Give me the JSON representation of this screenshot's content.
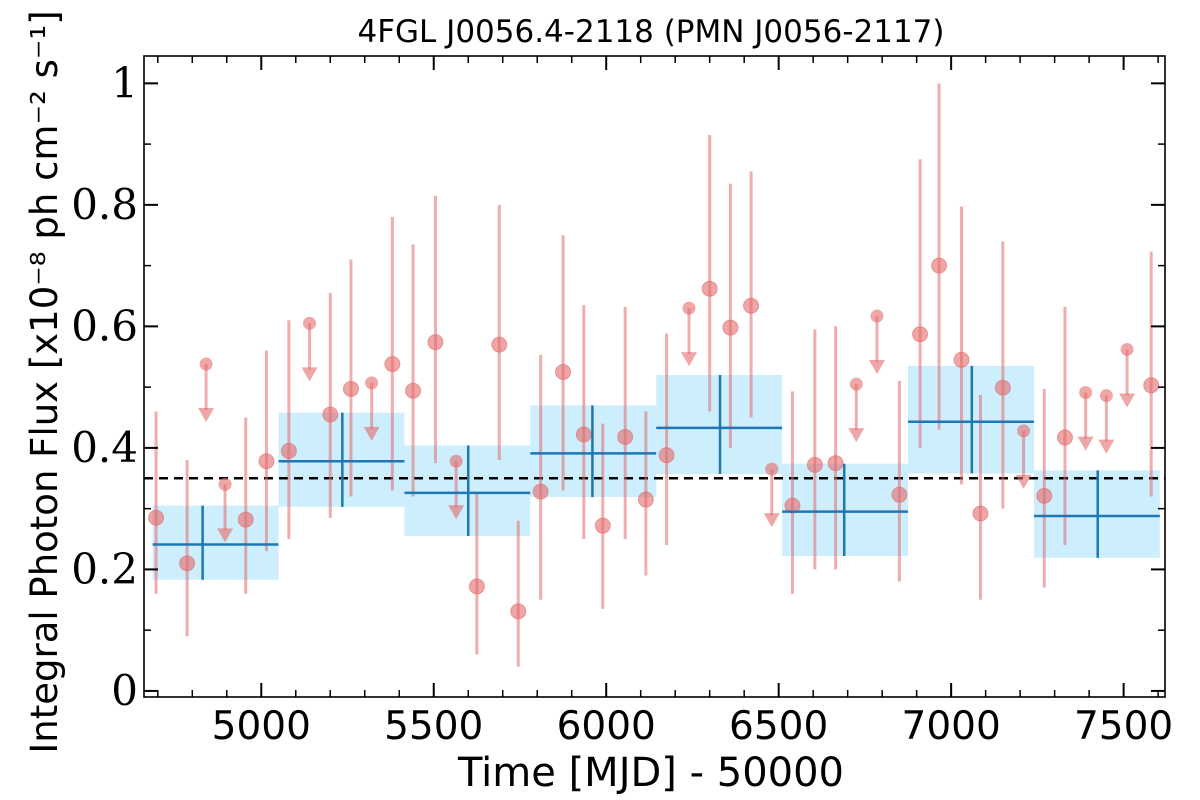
{
  "chart_data": {
    "type": "scatter",
    "title": "4FGL J0056.4-2118 (PMN J0056-2117)",
    "xlabel": "Time [MJD] - 50000",
    "ylabel": "Integral Photon Flux [x10⁻⁸ ph cm⁻² s⁻¹]",
    "xlim": [
      4660,
      7620
    ],
    "ylim": [
      -0.01,
      1.045
    ],
    "x_ticks": [
      5000,
      5500,
      6000,
      6500,
      7000,
      7500
    ],
    "x_tick_labels": [
      "5000",
      "5500",
      "6000",
      "6500",
      "7000",
      "7500"
    ],
    "y_ticks": [
      0,
      0.2,
      0.4,
      0.6,
      0.8,
      1.0
    ],
    "y_tick_labels": [
      "0",
      "0.2",
      "0.4",
      "0.6",
      "0.8",
      "1"
    ],
    "reference_line": {
      "y": 0.35,
      "style": "dashed",
      "color": "#000000"
    },
    "colors": {
      "points": "#e36a6a",
      "binned": "#1f77b4",
      "binned_band": "#cdeefd",
      "reference": "#000000"
    },
    "series": [
      {
        "kind": "measurement",
        "points": [
          {
            "x": 4695,
            "y": 0.285,
            "lo": 0.16,
            "hi": 0.46
          },
          {
            "x": 4785,
            "y": 0.21,
            "lo": 0.09,
            "hi": 0.38
          },
          {
            "x": 4955,
            "y": 0.282,
            "lo": 0.16,
            "hi": 0.45
          },
          {
            "x": 5015,
            "y": 0.378,
            "lo": 0.23,
            "hi": 0.56
          },
          {
            "x": 5080,
            "y": 0.395,
            "lo": 0.25,
            "hi": 0.61
          },
          {
            "x": 5200,
            "y": 0.455,
            "lo": 0.285,
            "hi": 0.655
          },
          {
            "x": 5260,
            "y": 0.497,
            "lo": 0.32,
            "hi": 0.71
          },
          {
            "x": 5380,
            "y": 0.538,
            "lo": 0.33,
            "hi": 0.78
          },
          {
            "x": 5440,
            "y": 0.494,
            "lo": 0.32,
            "hi": 0.735
          },
          {
            "x": 5505,
            "y": 0.574,
            "lo": 0.375,
            "hi": 0.815
          },
          {
            "x": 5625,
            "y": 0.172,
            "lo": 0.06,
            "hi": 0.325
          },
          {
            "x": 5690,
            "y": 0.57,
            "lo": 0.38,
            "hi": 0.8
          },
          {
            "x": 5745,
            "y": 0.131,
            "lo": 0.04,
            "hi": 0.28
          },
          {
            "x": 5810,
            "y": 0.328,
            "lo": 0.15,
            "hi": 0.553
          },
          {
            "x": 5875,
            "y": 0.525,
            "lo": 0.33,
            "hi": 0.75
          },
          {
            "x": 5935,
            "y": 0.422,
            "lo": 0.25,
            "hi": 0.635
          },
          {
            "x": 5990,
            "y": 0.272,
            "lo": 0.135,
            "hi": 0.44
          },
          {
            "x": 6055,
            "y": 0.418,
            "lo": 0.25,
            "hi": 0.632
          },
          {
            "x": 6115,
            "y": 0.315,
            "lo": 0.19,
            "hi": 0.46
          },
          {
            "x": 6175,
            "y": 0.388,
            "lo": 0.24,
            "hi": 0.588
          },
          {
            "x": 6300,
            "y": 0.662,
            "lo": 0.46,
            "hi": 0.915
          },
          {
            "x": 6360,
            "y": 0.598,
            "lo": 0.4,
            "hi": 0.835
          },
          {
            "x": 6420,
            "y": 0.634,
            "lo": 0.45,
            "hi": 0.855
          },
          {
            "x": 6540,
            "y": 0.305,
            "lo": 0.16,
            "hi": 0.493
          },
          {
            "x": 6605,
            "y": 0.372,
            "lo": 0.2,
            "hi": 0.595
          },
          {
            "x": 6665,
            "y": 0.375,
            "lo": 0.2,
            "hi": 0.6
          },
          {
            "x": 6850,
            "y": 0.323,
            "lo": 0.18,
            "hi": 0.51
          },
          {
            "x": 6910,
            "y": 0.587,
            "lo": 0.4,
            "hi": 0.875
          },
          {
            "x": 6965,
            "y": 0.7,
            "lo": 0.43,
            "hi": 1.0
          },
          {
            "x": 7030,
            "y": 0.545,
            "lo": 0.34,
            "hi": 0.797
          },
          {
            "x": 7085,
            "y": 0.292,
            "lo": 0.15,
            "hi": 0.487
          },
          {
            "x": 7150,
            "y": 0.499,
            "lo": 0.3,
            "hi": 0.74
          },
          {
            "x": 7270,
            "y": 0.321,
            "lo": 0.17,
            "hi": 0.497
          },
          {
            "x": 7330,
            "y": 0.417,
            "lo": 0.24,
            "hi": 0.632
          },
          {
            "x": 7580,
            "y": 0.503,
            "lo": 0.32,
            "hi": 0.723
          }
        ]
      },
      {
        "kind": "upper_limit",
        "points": [
          {
            "x": 4840,
            "y": 0.538
          },
          {
            "x": 4895,
            "y": 0.34
          },
          {
            "x": 5140,
            "y": 0.605
          },
          {
            "x": 5320,
            "y": 0.507
          },
          {
            "x": 5565,
            "y": 0.378
          },
          {
            "x": 6240,
            "y": 0.63
          },
          {
            "x": 6480,
            "y": 0.365
          },
          {
            "x": 6725,
            "y": 0.505
          },
          {
            "x": 6785,
            "y": 0.617
          },
          {
            "x": 7210,
            "y": 0.428
          },
          {
            "x": 7390,
            "y": 0.491
          },
          {
            "x": 7450,
            "y": 0.486
          },
          {
            "x": 7510,
            "y": 0.562
          }
        ]
      },
      {
        "kind": "binned",
        "bins": [
          {
            "x0": 4685,
            "x1": 5050,
            "xc": 4830,
            "y": 0.241,
            "lo": 0.183,
            "hi": 0.305
          },
          {
            "x0": 5050,
            "x1": 5415,
            "xc": 5235,
            "y": 0.378,
            "lo": 0.303,
            "hi": 0.458
          },
          {
            "x0": 5415,
            "x1": 5780,
            "xc": 5600,
            "y": 0.326,
            "lo": 0.255,
            "hi": 0.404
          },
          {
            "x0": 5780,
            "x1": 6145,
            "xc": 5960,
            "y": 0.391,
            "lo": 0.319,
            "hi": 0.47
          },
          {
            "x0": 6145,
            "x1": 6510,
            "xc": 6330,
            "y": 0.433,
            "lo": 0.357,
            "hi": 0.52
          },
          {
            "x0": 6510,
            "x1": 6875,
            "xc": 6690,
            "y": 0.295,
            "lo": 0.222,
            "hi": 0.374
          },
          {
            "x0": 6875,
            "x1": 7240,
            "xc": 7060,
            "y": 0.443,
            "lo": 0.358,
            "hi": 0.535
          },
          {
            "x0": 7240,
            "x1": 7605,
            "xc": 7425,
            "y": 0.288,
            "lo": 0.219,
            "hi": 0.363
          }
        ]
      }
    ]
  }
}
